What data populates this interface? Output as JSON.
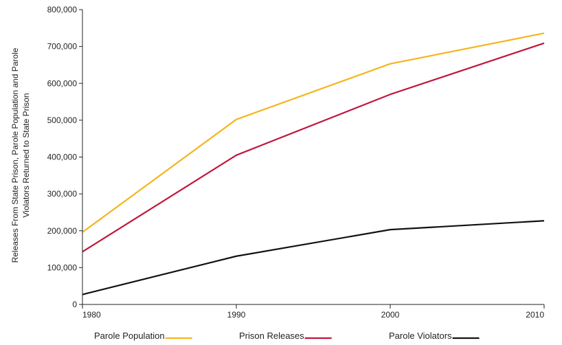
{
  "chart_data": {
    "type": "line",
    "x": [
      1980,
      1990,
      2000,
      2010
    ],
    "xlim": [
      1980,
      2010
    ],
    "ylim": [
      0,
      800000
    ],
    "yticks": [
      0,
      100000,
      200000,
      300000,
      400000,
      500000,
      600000,
      700000,
      800000
    ],
    "ytick_labels": [
      "0",
      "100,000",
      "200,000",
      "300,000",
      "400,000",
      "500,000",
      "600,000",
      "700,000",
      "800,000"
    ],
    "xtick_labels": [
      "1980",
      "1990",
      "2000",
      "2010"
    ],
    "ylabel_lines": [
      "Releases From State Prison, Parole Population and Parole",
      "Violators Returned to State Prison"
    ],
    "xlabel": "",
    "title": "",
    "grid": false,
    "legend_position": "bottom",
    "series": [
      {
        "name": "Parole Population",
        "color": "#f5b51c",
        "values": [
          196000,
          502000,
          653000,
          736000
        ]
      },
      {
        "name": "Prison Releases",
        "color": "#c0173b",
        "values": [
          143000,
          405000,
          570000,
          709000
        ]
      },
      {
        "name": "Parole Violators",
        "color": "#111111",
        "values": [
          27000,
          131000,
          203000,
          227000
        ]
      }
    ]
  }
}
